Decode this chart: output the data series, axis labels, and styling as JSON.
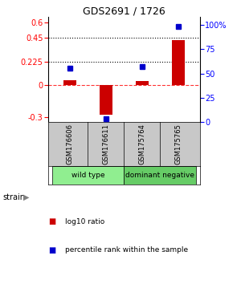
{
  "title": "GDS2691 / 1726",
  "samples": [
    "GSM176606",
    "GSM176611",
    "GSM175764",
    "GSM175765"
  ],
  "log10_ratio": [
    0.05,
    -0.28,
    0.04,
    0.43
  ],
  "percentile_rank": [
    55,
    3,
    57,
    98
  ],
  "groups": [
    {
      "label": "wild type",
      "samples": [
        0,
        1
      ],
      "color": "#90EE90"
    },
    {
      "label": "dominant negative",
      "samples": [
        2,
        3
      ],
      "color": "#66CC66"
    }
  ],
  "bar_color": "#CC0000",
  "dot_color": "#0000CC",
  "ylim_left": [
    -0.35,
    0.65
  ],
  "ylim_right": [
    0,
    108
  ],
  "yticks_left": [
    -0.3,
    0,
    0.225,
    0.45,
    0.6
  ],
  "yticks_right": [
    0,
    25,
    50,
    75,
    100
  ],
  "ytick_labels_left": [
    "-0.3",
    "0",
    "0.225",
    "0.45",
    "0.6"
  ],
  "ytick_labels_right": [
    "0",
    "25",
    "50",
    "75",
    "100%"
  ],
  "hlines_dotted": [
    0.225,
    0.45
  ],
  "hline_dashed": 0,
  "background_color": "#ffffff",
  "sample_bg_color": "#c8c8c8",
  "strain_label": "strain",
  "legend_items": [
    {
      "color": "#CC0000",
      "label": "log10 ratio"
    },
    {
      "color": "#0000CC",
      "label": "percentile rank within the sample"
    }
  ]
}
